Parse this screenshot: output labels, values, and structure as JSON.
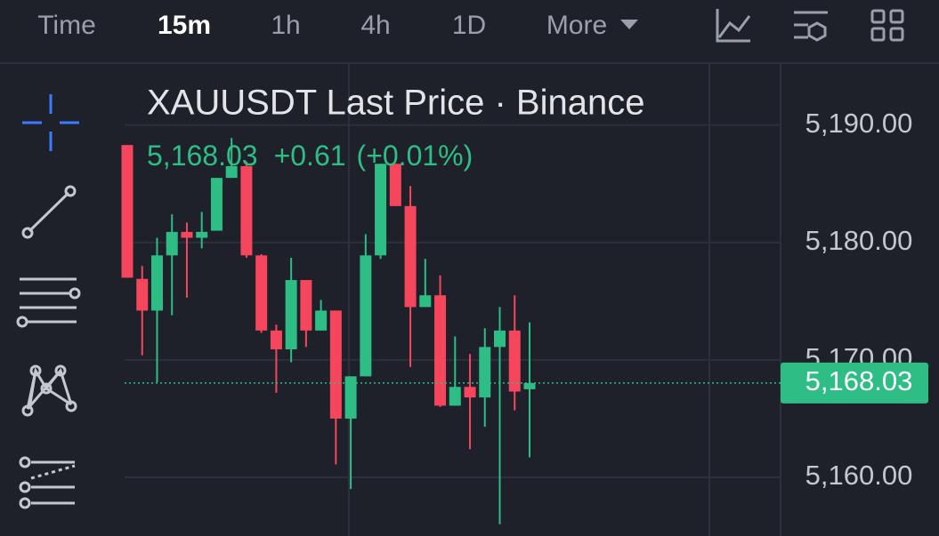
{
  "toolbar": {
    "items": [
      "Time",
      "15m",
      "1h",
      "4h",
      "1D",
      "More"
    ],
    "selected": "15m"
  },
  "chart_data": {
    "type": "candlestick",
    "title": "XAUUSDT Last Price · Binance",
    "last_price": {
      "value": 5168.03,
      "label": "5,168.03"
    },
    "change": "+0.61",
    "change_pct": "(+0.01%)",
    "up_color": "#2ebd85",
    "down_color": "#f6465d",
    "open": [
      5188.3,
      5176.9,
      5174.2,
      5178.9,
      5180.9,
      5180.4,
      5181.0,
      5185.5,
      5186.5,
      5178.9,
      5172.5,
      5170.9,
      5176.8,
      5172.5,
      5174.2,
      5165.0,
      5168.6,
      5178.9,
      5186.7,
      5183.1,
      5174.5,
      5175.5,
      5166.1,
      5167.7,
      5166.8,
      5171.1,
      5172.5,
      5167.5
    ],
    "high": [
      5188.3,
      5178.0,
      5180.4,
      5182.4,
      5181.7,
      5182.6,
      5185.5,
      5188.9,
      5186.9,
      5179.0,
      5173.0,
      5178.7,
      5176.8,
      5175.1,
      5174.2,
      5168.6,
      5180.7,
      5186.7,
      5186.7,
      5184.8,
      5178.6,
      5177.2,
      5172.0,
      5170.5,
      5172.7,
      5174.5,
      5175.5,
      5173.2
    ],
    "low": [
      5177.0,
      5170.4,
      5168.1,
      5173.8,
      5175.3,
      5179.5,
      5181.0,
      5185.5,
      5178.7,
      5172.3,
      5167.2,
      5169.8,
      5171.1,
      5172.5,
      5161.1,
      5159.0,
      5168.6,
      5178.6,
      5183.1,
      5169.4,
      5174.5,
      5166.0,
      5166.1,
      5162.4,
      5164.3,
      5156.0,
      5165.7,
      5161.7
    ],
    "close": [
      5177.0,
      5174.2,
      5178.9,
      5180.9,
      5180.4,
      5180.9,
      5185.5,
      5186.5,
      5178.9,
      5172.5,
      5170.9,
      5176.8,
      5172.5,
      5174.2,
      5165.0,
      5168.6,
      5178.9,
      5186.7,
      5183.1,
      5174.5,
      5175.5,
      5166.1,
      5167.7,
      5166.8,
      5171.1,
      5172.5,
      5167.3,
      5168.03
    ],
    "ylim": [
      5155,
      5195.2
    ],
    "yticks": [
      {
        "value": 5160,
        "label": "5,160.00"
      },
      {
        "value": 5170,
        "label": "5,170.00"
      },
      {
        "value": 5180,
        "label": "5,180.00"
      },
      {
        "value": 5190,
        "label": "5,190.00"
      }
    ],
    "grid": true
  }
}
